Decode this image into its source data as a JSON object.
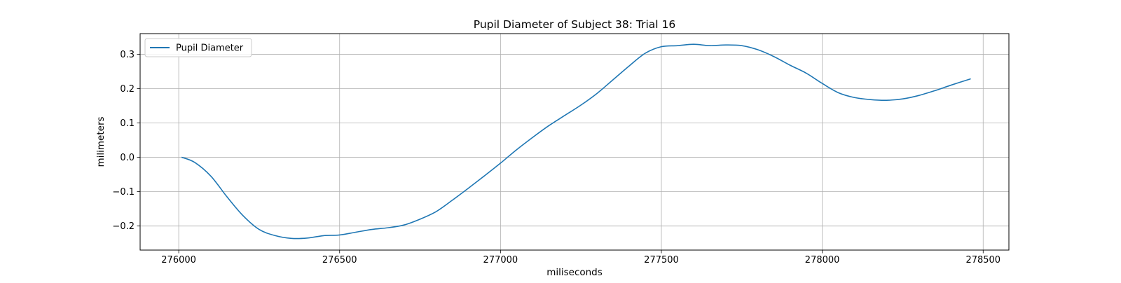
{
  "chart_data": {
    "type": "line",
    "title": "Pupil Diameter of Subject 38: Trial 16",
    "xlabel": "miliseconds",
    "ylabel": "milimeters",
    "xlim": [
      275880,
      278580
    ],
    "ylim": [
      -0.27,
      0.36
    ],
    "xticks": [
      276000,
      276500,
      277000,
      277500,
      278000,
      278500
    ],
    "yticks": [
      -0.2,
      -0.1,
      0.0,
      0.1,
      0.2,
      0.3
    ],
    "xtick_labels": [
      "276000",
      "276500",
      "277000",
      "277500",
      "278000",
      "278500"
    ],
    "ytick_labels": [
      "−0.2",
      "−0.1",
      "0.0",
      "0.1",
      "0.2",
      "0.3"
    ],
    "grid": true,
    "legend_position": "upper-left",
    "series": [
      {
        "name": "Pupil Diameter",
        "color": "#1f77b4",
        "x": [
          276010,
          276050,
          276100,
          276150,
          276200,
          276250,
          276300,
          276350,
          276400,
          276450,
          276500,
          276550,
          276600,
          276650,
          276700,
          276750,
          276800,
          276850,
          276900,
          276950,
          277000,
          277050,
          277100,
          277150,
          277200,
          277250,
          277300,
          277350,
          277400,
          277450,
          277500,
          277550,
          277600,
          277650,
          277700,
          277750,
          277800,
          277850,
          277900,
          277950,
          278000,
          278050,
          278100,
          278150,
          278200,
          278250,
          278300,
          278350,
          278400,
          278460
        ],
        "y": [
          0.0,
          -0.015,
          -0.055,
          -0.115,
          -0.17,
          -0.21,
          -0.228,
          -0.236,
          -0.235,
          -0.228,
          -0.226,
          -0.218,
          -0.21,
          -0.205,
          -0.197,
          -0.18,
          -0.158,
          -0.125,
          -0.09,
          -0.054,
          -0.017,
          0.022,
          0.058,
          0.092,
          0.122,
          0.152,
          0.186,
          0.226,
          0.266,
          0.303,
          0.322,
          0.325,
          0.329,
          0.325,
          0.327,
          0.325,
          0.313,
          0.293,
          0.268,
          0.245,
          0.215,
          0.188,
          0.174,
          0.168,
          0.166,
          0.17,
          0.18,
          0.194,
          0.21,
          0.228
        ]
      }
    ]
  }
}
